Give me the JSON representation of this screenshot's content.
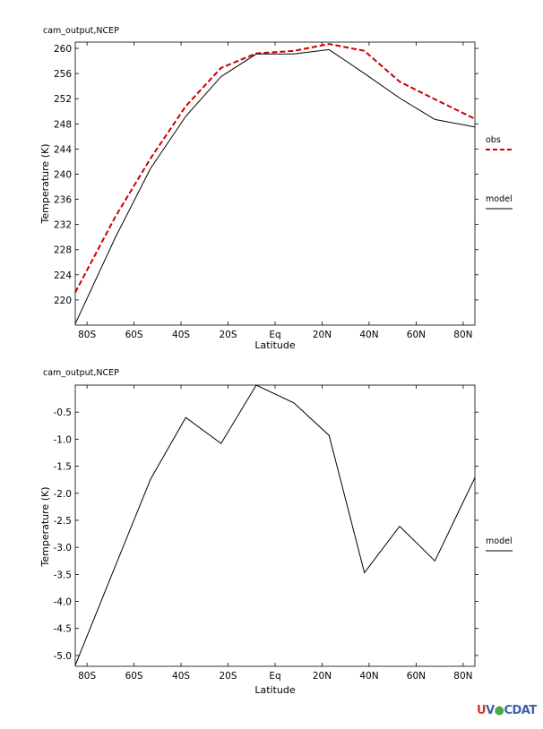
{
  "chart_data": [
    {
      "type": "line",
      "title": "cam_output,NCEP",
      "xlabel": "Latitude",
      "ylabel": "Temperature (K)",
      "xlim": [
        -85,
        85
      ],
      "ylim": [
        216,
        261
      ],
      "x_ticks": [
        {
          "value": -80,
          "label": "80S"
        },
        {
          "value": -60,
          "label": "60S"
        },
        {
          "value": -40,
          "label": "40S"
        },
        {
          "value": -20,
          "label": "20S"
        },
        {
          "value": 0,
          "label": "Eq"
        },
        {
          "value": 20,
          "label": "20N"
        },
        {
          "value": 40,
          "label": "40N"
        },
        {
          "value": 60,
          "label": "60N"
        },
        {
          "value": 80,
          "label": "80N"
        }
      ],
      "y_ticks": [
        {
          "value": 220,
          "label": "220"
        },
        {
          "value": 224,
          "label": "224"
        },
        {
          "value": 228,
          "label": "228"
        },
        {
          "value": 232,
          "label": "232"
        },
        {
          "value": 236,
          "label": "236"
        },
        {
          "value": 240,
          "label": "240"
        },
        {
          "value": 244,
          "label": "244"
        },
        {
          "value": 248,
          "label": "248"
        },
        {
          "value": 252,
          "label": "252"
        },
        {
          "value": 256,
          "label": "256"
        },
        {
          "value": 260,
          "label": "260"
        }
      ],
      "series": [
        {
          "name": "obs",
          "color": "#cc0000",
          "dash": true,
          "x": [
            -85,
            -68,
            -53,
            -38,
            -23,
            -8,
            8,
            23,
            38,
            53,
            68,
            85
          ],
          "y": [
            221.2,
            233.2,
            242.5,
            250.8,
            256.9,
            259.2,
            259.6,
            260.7,
            259.6,
            254.7,
            251.9,
            248.8
          ]
        },
        {
          "name": "model",
          "color": "#000000",
          "dash": false,
          "x": [
            -85,
            -68,
            -53,
            -38,
            -23,
            -8,
            8,
            23,
            38,
            53,
            68,
            85
          ],
          "y": [
            216.2,
            229.9,
            240.9,
            249.2,
            255.5,
            259.1,
            259.1,
            259.8,
            256.0,
            252.1,
            248.7,
            247.5
          ]
        }
      ]
    },
    {
      "type": "line",
      "title": "cam_output,NCEP",
      "xlabel": "Latitude",
      "ylabel": "Temperature (K)",
      "xlim": [
        -85,
        85
      ],
      "ylim": [
        -5.2,
        0.0
      ],
      "x_ticks": [
        {
          "value": -80,
          "label": "80S"
        },
        {
          "value": -60,
          "label": "60S"
        },
        {
          "value": -40,
          "label": "40S"
        },
        {
          "value": -20,
          "label": "20S"
        },
        {
          "value": 0,
          "label": "Eq"
        },
        {
          "value": 20,
          "label": "20N"
        },
        {
          "value": 40,
          "label": "40N"
        },
        {
          "value": 60,
          "label": "60N"
        },
        {
          "value": 80,
          "label": "80N"
        }
      ],
      "y_ticks": [
        {
          "value": -0.5,
          "label": "-0.5"
        },
        {
          "value": -1.0,
          "label": "-1.0"
        },
        {
          "value": -1.5,
          "label": "-1.5"
        },
        {
          "value": -2.0,
          "label": "-2.0"
        },
        {
          "value": -2.5,
          "label": "-2.5"
        },
        {
          "value": -3.0,
          "label": "-3.0"
        },
        {
          "value": -3.5,
          "label": "-3.5"
        },
        {
          "value": -4.0,
          "label": "-4.0"
        },
        {
          "value": -4.5,
          "label": "-4.5"
        },
        {
          "value": -5.0,
          "label": "-5.0"
        }
      ],
      "series": [
        {
          "name": "model",
          "color": "#000000",
          "dash": false,
          "x": [
            -85,
            -68,
            -53,
            -38,
            -23,
            -8,
            8,
            23,
            38,
            53,
            68,
            85
          ],
          "y": [
            -5.18,
            -3.35,
            -1.74,
            -0.6,
            -1.08,
            0.0,
            -0.33,
            -0.93,
            -3.47,
            -2.61,
            -3.25,
            -1.71
          ]
        }
      ]
    }
  ],
  "logo": {
    "u": "U",
    "v": "V",
    "cdat": "CDAT",
    "ring": "●"
  }
}
